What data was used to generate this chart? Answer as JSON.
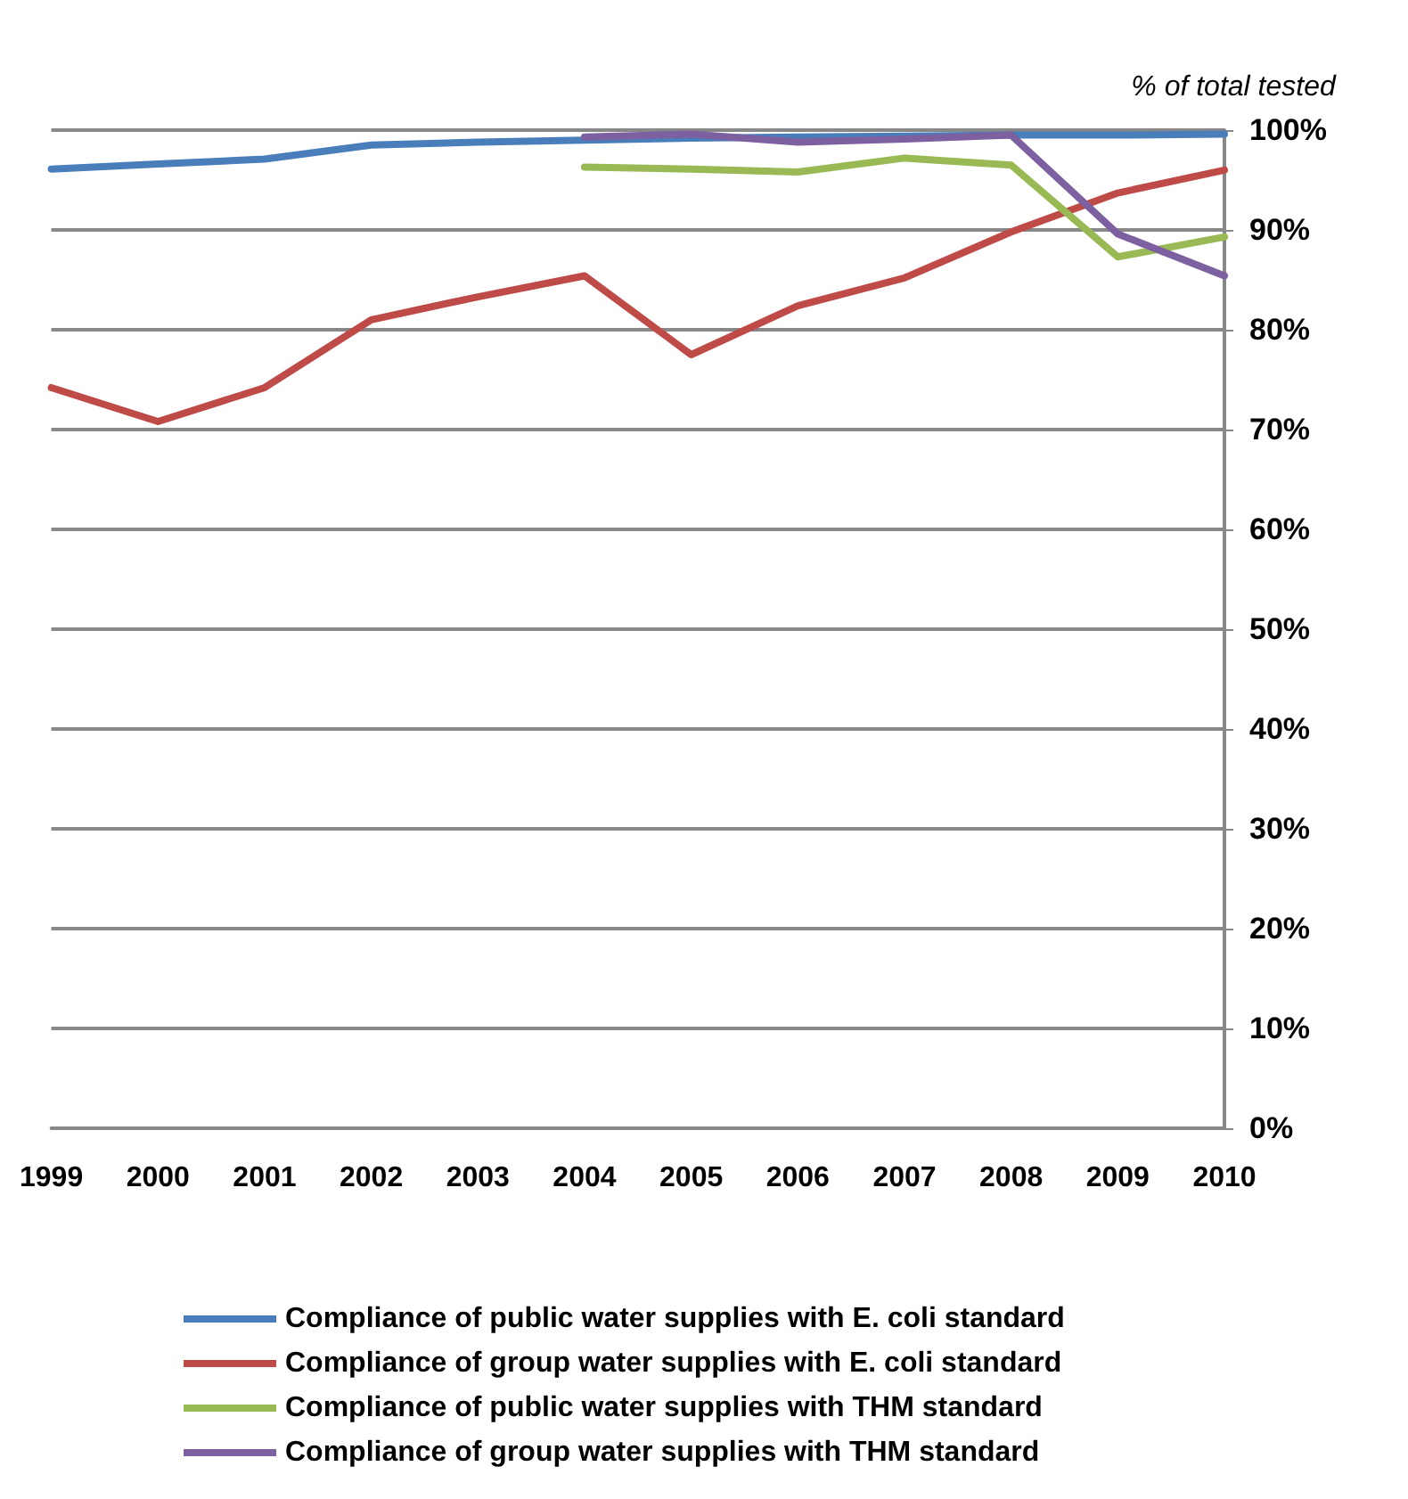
{
  "chart_data": {
    "type": "line",
    "ylabel": "% of total tested",
    "categories": [
      "1999",
      "2000",
      "2001",
      "2002",
      "2003",
      "2004",
      "2005",
      "2006",
      "2007",
      "2008",
      "2009",
      "2010"
    ],
    "series": [
      {
        "name": "Compliance of public water supplies with E. coli standard",
        "color": "#4a7ebb",
        "values": [
          96.1,
          96.6,
          97.1,
          98.5,
          98.8,
          99.0,
          99.2,
          99.3,
          99.4,
          99.5,
          99.5,
          99.6
        ]
      },
      {
        "name": "Compliance of group water supplies with E. coli standard",
        "color": "#be4b48",
        "values": [
          74.2,
          70.8,
          74.2,
          81.0,
          83.3,
          85.4,
          77.5,
          82.4,
          85.2,
          89.8,
          93.7,
          96.0
        ]
      },
      {
        "name": "Compliance of public water supplies with THM standard",
        "color": "#98b954",
        "values": [
          null,
          null,
          null,
          null,
          null,
          96.3,
          96.1,
          95.8,
          97.2,
          96.5,
          87.3,
          89.3
        ]
      },
      {
        "name": "Compliance of group water supplies with THM standard",
        "color": "#7d60a0",
        "values": [
          null,
          null,
          null,
          null,
          null,
          99.3,
          99.6,
          98.8,
          99.1,
          99.5,
          89.6,
          85.4
        ]
      }
    ],
    "ylim": [
      0,
      100
    ],
    "yticks": [
      {
        "value": 0,
        "label": "0%"
      },
      {
        "value": 10,
        "label": "10%"
      },
      {
        "value": 20,
        "label": "20%"
      },
      {
        "value": 30,
        "label": "30%"
      },
      {
        "value": 40,
        "label": "40%"
      },
      {
        "value": 50,
        "label": "50%"
      },
      {
        "value": 60,
        "label": "60%"
      },
      {
        "value": 70,
        "label": "70%"
      },
      {
        "value": 80,
        "label": "80%"
      },
      {
        "value": 90,
        "label": "90%"
      },
      {
        "value": 100,
        "label": "100%"
      }
    ],
    "grid": "y",
    "legend": "bottom",
    "marker": "none",
    "line_style": "solid"
  }
}
